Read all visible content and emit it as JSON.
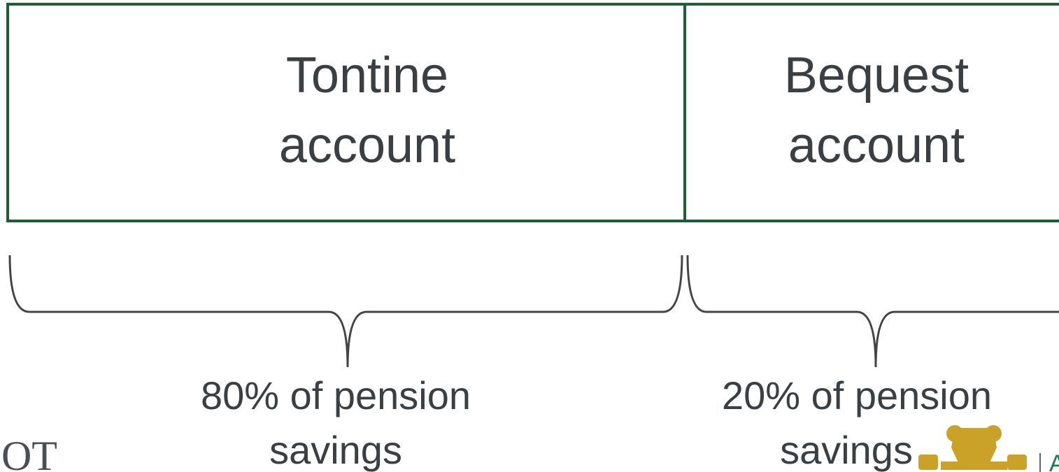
{
  "boxes": [
    {
      "lines": [
        "Tontine",
        "account"
      ]
    },
    {
      "lines": [
        "Bequest",
        "account"
      ]
    }
  ],
  "braces": [
    {
      "lines": [
        "80% of pension",
        "savings"
      ]
    },
    {
      "lines": [
        "20% of pension",
        "savings"
      ]
    }
  ],
  "footer": {
    "left_logo_text": "IOT",
    "right_text": "A"
  }
}
